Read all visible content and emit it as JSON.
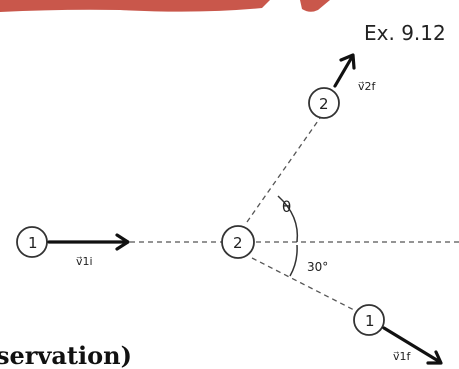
{
  "example_label": "Ex. 9.12",
  "footer_fragment": "servation)",
  "balls": {
    "ball1_initial": "1",
    "target_ball": "2",
    "ball2_final": "2",
    "ball1_final": "1"
  },
  "vectors": {
    "v1i": "v⃗1i",
    "v2f": "v⃗2f",
    "v1f": "v⃗1f"
  },
  "angles": {
    "theta": "θ",
    "deflection": "30°"
  },
  "colors": {
    "banner_red": "#c0392b",
    "ink": "#111111"
  }
}
